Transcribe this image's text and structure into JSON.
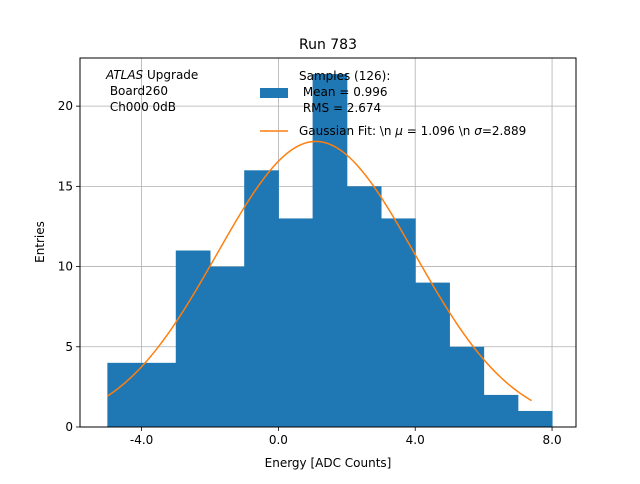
{
  "chart_data": {
    "type": "bar",
    "title": "Run 783",
    "xlabel": "Energy [ADC Counts]",
    "ylabel": "Entries",
    "xlim": [
      -5.8,
      8.7
    ],
    "ylim": [
      0,
      23.0
    ],
    "grid": true,
    "xticks": [
      -4,
      0,
      4,
      8
    ],
    "xtick_labels": [
      "-4.0",
      "0.0",
      "4.0",
      "8.0"
    ],
    "yticks": [
      0,
      5,
      10,
      15,
      20
    ],
    "ytick_labels": [
      "0",
      "5",
      "10",
      "15",
      "20"
    ],
    "bin_edges": [
      -5,
      -4,
      -3,
      -2,
      -1,
      0,
      1,
      2,
      3,
      4,
      5,
      6,
      7,
      8
    ],
    "series": [
      {
        "name": "Samples (126):\n Mean = 0.996\n RMS = 2.674",
        "kind": "histogram",
        "color": "#1f77b4",
        "values": [
          4,
          4,
          11,
          10,
          16,
          13,
          22,
          15,
          13,
          9,
          5,
          2,
          1
        ]
      },
      {
        "name": "Gaussian Fit: \\n μ = 1.096 \\n σ=2.889",
        "kind": "gaussian-fit",
        "color": "#ff7f0e",
        "amplitude": 17.8,
        "mu": 1.096,
        "sigma": 2.889,
        "x_range": [
          -5.0,
          7.4
        ]
      }
    ],
    "annotation": {
      "lines": [
        "ATLAS Upgrade",
        " Board260",
        " Ch000 0dB"
      ],
      "italic_word": "ATLAS"
    },
    "legend": {
      "location": "top-right",
      "hist_label_lines": [
        "Samples (126):",
        " Mean = 0.996",
        " RMS = 2.674"
      ],
      "fit_label_prefix": "Gaussian Fit: \\n ",
      "fit_mu_symbol": "μ",
      "fit_mu_text": " = 1.096 \\n ",
      "fit_sigma_symbol": "σ",
      "fit_sigma_text": "=2.889"
    }
  }
}
